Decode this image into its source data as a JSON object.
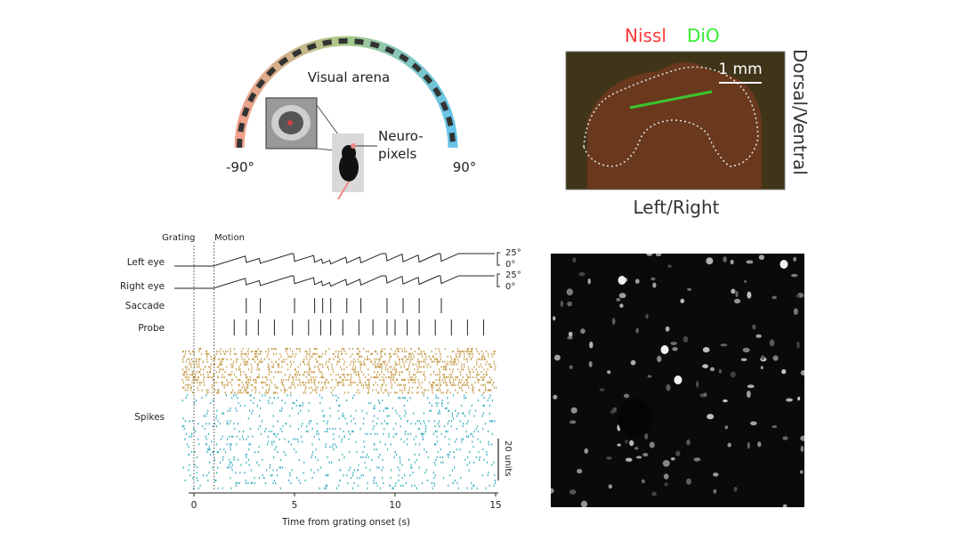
{
  "arena": {
    "title": "Visual arena",
    "left_angle": "-90°",
    "right_angle": "90°",
    "probe_label_line1": "Neuro-",
    "probe_label_line2": "pixels",
    "colors": {
      "left": "#f0a08a",
      "top": "#a8c98a",
      "right": "#66c5ea",
      "dash": "#333333",
      "mouse": "#111111",
      "mouse_tail": "#ee8888"
    }
  },
  "histology": {
    "stain1": "Nissl",
    "stain2": "DiO",
    "scale_bar": "1 mm",
    "axis_vertical": "Dorsal/Ventral",
    "axis_horizontal": "Left/Right",
    "colors": {
      "stain1": "#ff3a3a",
      "stain2": "#33ee33",
      "tissue": "#5a3018",
      "outline": "#dddddd"
    }
  },
  "raster": {
    "event_grating": "Grating",
    "event_motion": "Motion",
    "row_left_eye": "Left eye",
    "row_right_eye": "Right eye",
    "row_saccade": "Saccade",
    "row_probe": "Probe",
    "row_spikes": "Spikes",
    "eye_scale_top": "25°",
    "eye_scale_zero": "0°",
    "units_scale": "20 units",
    "xlabel": "Time from grating onset (s)",
    "x_ticks": [
      "0",
      "5",
      "10",
      "15"
    ],
    "colors": {
      "upper_units": "#c8a050",
      "lower_units": "#3ab0c0",
      "trace": "#222222"
    }
  },
  "chart_data": {
    "type": "scatter",
    "xlabel": "Time from grating onset (s)",
    "xlim": [
      0,
      15
    ],
    "x_ticks": [
      0,
      5,
      10,
      15
    ],
    "events": {
      "Grating": 0,
      "Motion": 1
    },
    "saccade_times": [
      2.6,
      3.3,
      5.0,
      6.0,
      6.4,
      6.8,
      7.6,
      8.3,
      9.6,
      10.4,
      11.2,
      12.3
    ],
    "probe_times": [
      2.0,
      2.6,
      3.2,
      4.0,
      4.9,
      5.7,
      6.3,
      6.8,
      7.4,
      8.2,
      8.9,
      9.6,
      10.0,
      10.6,
      11.2,
      12.0,
      12.8,
      13.6,
      14.4
    ]
  },
  "microscopy": {
    "colors": {
      "background": "#0a0a0a",
      "cell": "#c8c8c8"
    }
  }
}
